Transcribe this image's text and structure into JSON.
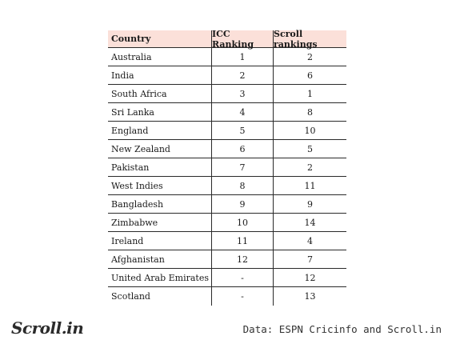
{
  "table": {
    "headers": [
      "Country",
      "ICC Ranking",
      "Scroll rankings"
    ],
    "rows": [
      [
        "Australia",
        "1",
        "2"
      ],
      [
        "India",
        "2",
        "6"
      ],
      [
        "South Africa",
        "3",
        "1"
      ],
      [
        "Sri Lanka",
        "4",
        "8"
      ],
      [
        "England",
        "5",
        "10"
      ],
      [
        "New Zealand",
        "6",
        "5"
      ],
      [
        "Pakistan",
        "7",
        "2"
      ],
      [
        "West Indies",
        "8",
        "11"
      ],
      [
        "Bangladesh",
        "9",
        "9"
      ],
      [
        "Zimbabwe",
        "10",
        "14"
      ],
      [
        "Ireland",
        "11",
        "4"
      ],
      [
        "Afghanistan",
        "12",
        "7"
      ],
      [
        "United Arab Emirates",
        "-",
        "12"
      ],
      [
        "Scotland",
        "-",
        "13"
      ]
    ]
  },
  "footer": {
    "logo": "Scroll.in",
    "source": "Data: ESPN Cricinfo and Scroll.in"
  },
  "colors": {
    "header_bg": "#fbe0d9"
  }
}
